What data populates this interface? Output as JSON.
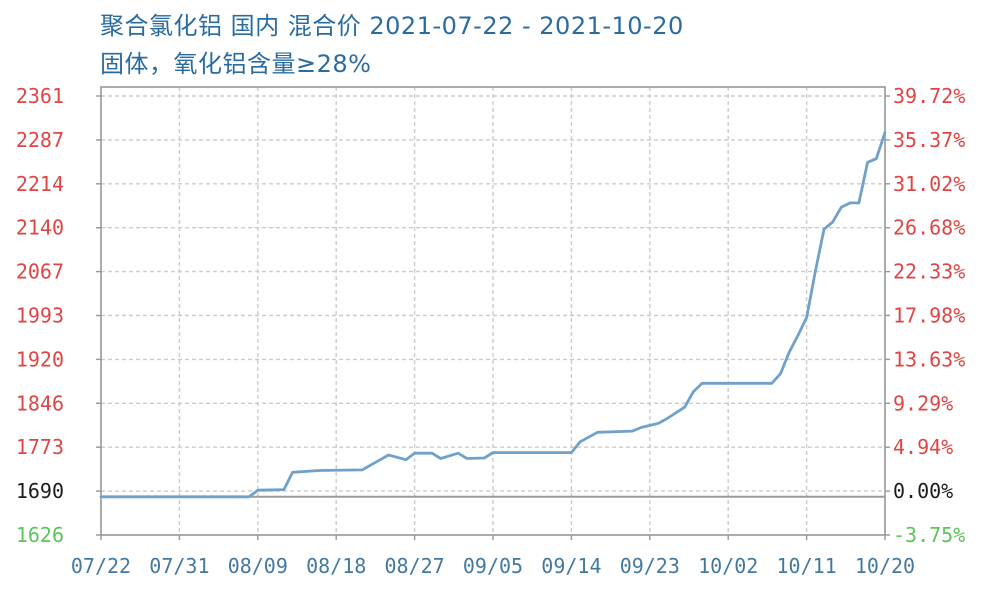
{
  "header": {
    "title": "聚合氯化铝 国内 混合价 2021-07-22 - 2021-10-20",
    "subtitle": "固体，氧化铝含量≥28%"
  },
  "colors": {
    "title": "#2b6ca0",
    "up": "#df4545",
    "base": "#1c1c1c",
    "down": "#5cc45c",
    "date_label": "#44799f",
    "line": "#6fa1cb",
    "baseline": "#9b9b9b",
    "grid": "#cbcbcb",
    "border": "#979797",
    "background": "#ffffff"
  },
  "chart_data": {
    "type": "line",
    "title": "聚合氯化铝 国内 混合价 2021-07-22 - 2021-10-20",
    "subtitle": "固体，氧化铝含量≥28%",
    "series_name": "混合价",
    "x_range": [
      "2021-07-22",
      "2021-10-20"
    ],
    "base_value": 1690,
    "end_value": 2300,
    "y_scale": {
      "min": 1626,
      "max": 2361
    },
    "grid": true,
    "left_ticks": [
      {
        "text": "2361",
        "tone": "up"
      },
      {
        "text": "2287",
        "tone": "up"
      },
      {
        "text": "2214",
        "tone": "up"
      },
      {
        "text": "2140",
        "tone": "up"
      },
      {
        "text": "2067",
        "tone": "up"
      },
      {
        "text": "1993",
        "tone": "up"
      },
      {
        "text": "1920",
        "tone": "up"
      },
      {
        "text": "1846",
        "tone": "up"
      },
      {
        "text": "1773",
        "tone": "up"
      },
      {
        "text": "1690",
        "tone": "base"
      },
      {
        "text": "1626",
        "tone": "down"
      }
    ],
    "right_ticks": [
      {
        "text": "39.72%",
        "tone": "up"
      },
      {
        "text": "35.37%",
        "tone": "up"
      },
      {
        "text": "31.02%",
        "tone": "up"
      },
      {
        "text": "26.68%",
        "tone": "up"
      },
      {
        "text": "22.33%",
        "tone": "up"
      },
      {
        "text": "17.98%",
        "tone": "up"
      },
      {
        "text": "13.63%",
        "tone": "up"
      },
      {
        "text": "9.29%",
        "tone": "up"
      },
      {
        "text": "4.94%",
        "tone": "up"
      },
      {
        "text": "0.00%",
        "tone": "base"
      },
      {
        "text": "-3.75%",
        "tone": "down"
      }
    ],
    "x_ticks": [
      "07/22",
      "07/31",
      "08/09",
      "08/18",
      "08/27",
      "09/05",
      "09/14",
      "09/23",
      "10/02",
      "10/11",
      "10/20"
    ],
    "points": [
      {
        "d": "07/22",
        "v": 1690
      },
      {
        "d": "08/08",
        "v": 1690
      },
      {
        "d": "08/09",
        "v": 1701
      },
      {
        "d": "08/12",
        "v": 1702
      },
      {
        "d": "08/13",
        "v": 1731
      },
      {
        "d": "08/16",
        "v": 1734
      },
      {
        "d": "08/21",
        "v": 1735
      },
      {
        "d": "08/24",
        "v": 1760
      },
      {
        "d": "08/26",
        "v": 1752
      },
      {
        "d": "08/27",
        "v": 1763
      },
      {
        "d": "08/29",
        "v": 1763
      },
      {
        "d": "08/30",
        "v": 1754
      },
      {
        "d": "09/01",
        "v": 1763
      },
      {
        "d": "09/02",
        "v": 1754
      },
      {
        "d": "09/04",
        "v": 1755
      },
      {
        "d": "09/05",
        "v": 1764
      },
      {
        "d": "09/14",
        "v": 1764
      },
      {
        "d": "09/15",
        "v": 1782
      },
      {
        "d": "09/17",
        "v": 1798
      },
      {
        "d": "09/21",
        "v": 1800
      },
      {
        "d": "09/22",
        "v": 1806
      },
      {
        "d": "09/24",
        "v": 1813
      },
      {
        "d": "09/25",
        "v": 1821
      },
      {
        "d": "09/27",
        "v": 1840
      },
      {
        "d": "09/28",
        "v": 1866
      },
      {
        "d": "09/29",
        "v": 1880
      },
      {
        "d": "10/07",
        "v": 1880
      },
      {
        "d": "10/08",
        "v": 1896
      },
      {
        "d": "10/09",
        "v": 1932
      },
      {
        "d": "10/10",
        "v": 1960
      },
      {
        "d": "10/11",
        "v": 1990
      },
      {
        "d": "10/12",
        "v": 2067
      },
      {
        "d": "10/13",
        "v": 2138
      },
      {
        "d": "10/14",
        "v": 2150
      },
      {
        "d": "10/15",
        "v": 2175
      },
      {
        "d": "10/16",
        "v": 2182
      },
      {
        "d": "10/17",
        "v": 2182
      },
      {
        "d": "10/18",
        "v": 2250
      },
      {
        "d": "10/19",
        "v": 2256
      },
      {
        "d": "10/20",
        "v": 2300
      }
    ]
  }
}
